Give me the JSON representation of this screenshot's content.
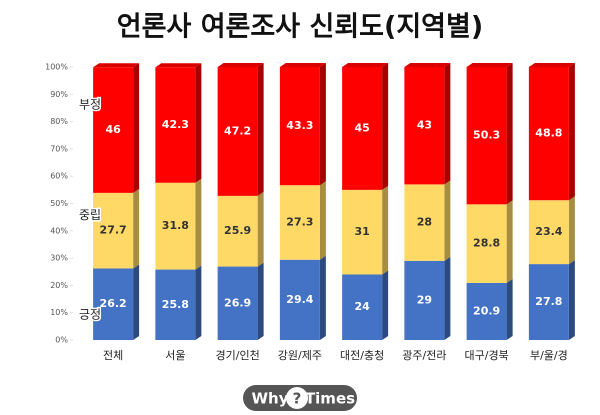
{
  "chart_data": {
    "type": "stacked_bar",
    "title": "언론사 여론조사 신뢰도(지역별)",
    "categories": [
      "전체",
      "서울",
      "경기/인천",
      "강원/제주",
      "대전/충청",
      "광주/전라",
      "대구/경북",
      "부/울/경"
    ],
    "series": [
      {
        "name": "긍정",
        "color": "#4472c4",
        "label_color": "#ffffff",
        "values": [
          26.2,
          25.8,
          26.9,
          29.4,
          24,
          29,
          20.9,
          27.8
        ]
      },
      {
        "name": "중립",
        "color": "#ffd966",
        "label_color": "#333333",
        "values": [
          27.7,
          31.8,
          25.9,
          27.3,
          31,
          28,
          28.8,
          23.4
        ]
      },
      {
        "name": "부정",
        "color": "#ff0000",
        "label_color": "#ffffff",
        "values": [
          46,
          42.3,
          47.2,
          43.3,
          45,
          43,
          50.3,
          48.8
        ]
      }
    ],
    "ylim": [
      0,
      100
    ],
    "yticks": [
      {
        "value": 0,
        "label": "0%"
      },
      {
        "value": 10,
        "label": "10%"
      },
      {
        "value": 20,
        "label": "20%"
      },
      {
        "value": 30,
        "label": "30%"
      },
      {
        "value": 40,
        "label": "40%"
      },
      {
        "value": 50,
        "label": "50%"
      },
      {
        "value": 60,
        "label": "60%"
      },
      {
        "value": 70,
        "label": "70%"
      },
      {
        "value": 80,
        "label": "80%"
      },
      {
        "value": 90,
        "label": "90%"
      },
      {
        "value": 100,
        "label": "100%"
      }
    ],
    "logo": {
      "left": "Why",
      "mark": "?",
      "right": "Times"
    }
  }
}
